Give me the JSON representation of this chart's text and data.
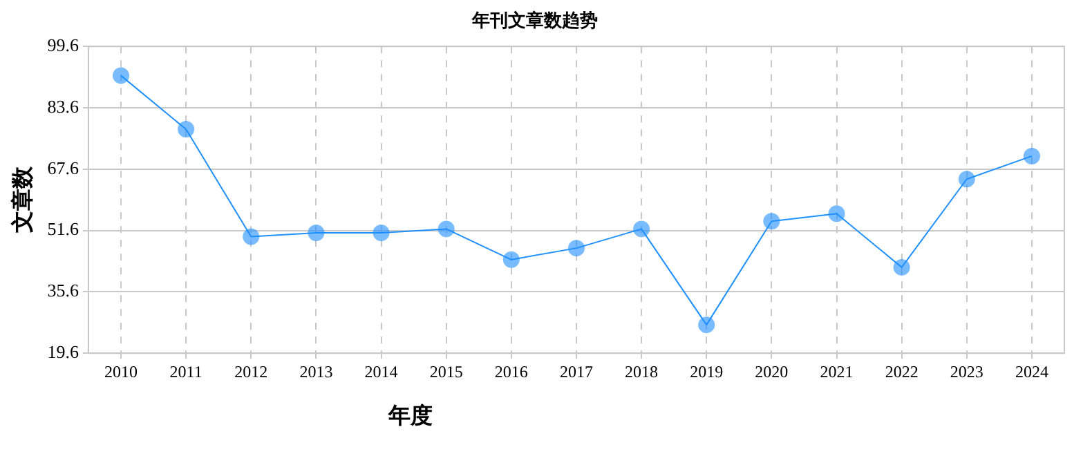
{
  "chart_data": {
    "type": "line",
    "title": "年刊文章数趋势",
    "xlabel": "年度",
    "ylabel": "文章数",
    "categories": [
      "2010",
      "2011",
      "2012",
      "2013",
      "2014",
      "2015",
      "2016",
      "2017",
      "2018",
      "2019",
      "2020",
      "2021",
      "2022",
      "2023",
      "2024"
    ],
    "series": [
      {
        "color": "#1e90ff",
        "values": [
          92,
          78,
          50,
          51,
          51,
          52,
          44,
          47,
          52,
          27,
          54,
          56,
          42,
          65,
          71
        ]
      }
    ],
    "ylim": [
      19.6,
      99.6
    ],
    "yticks": [
      19.6,
      35.6,
      51.6,
      67.6,
      83.6,
      99.6
    ],
    "grid": true,
    "marker": "circle",
    "line_style": "solid",
    "legend": false
  }
}
